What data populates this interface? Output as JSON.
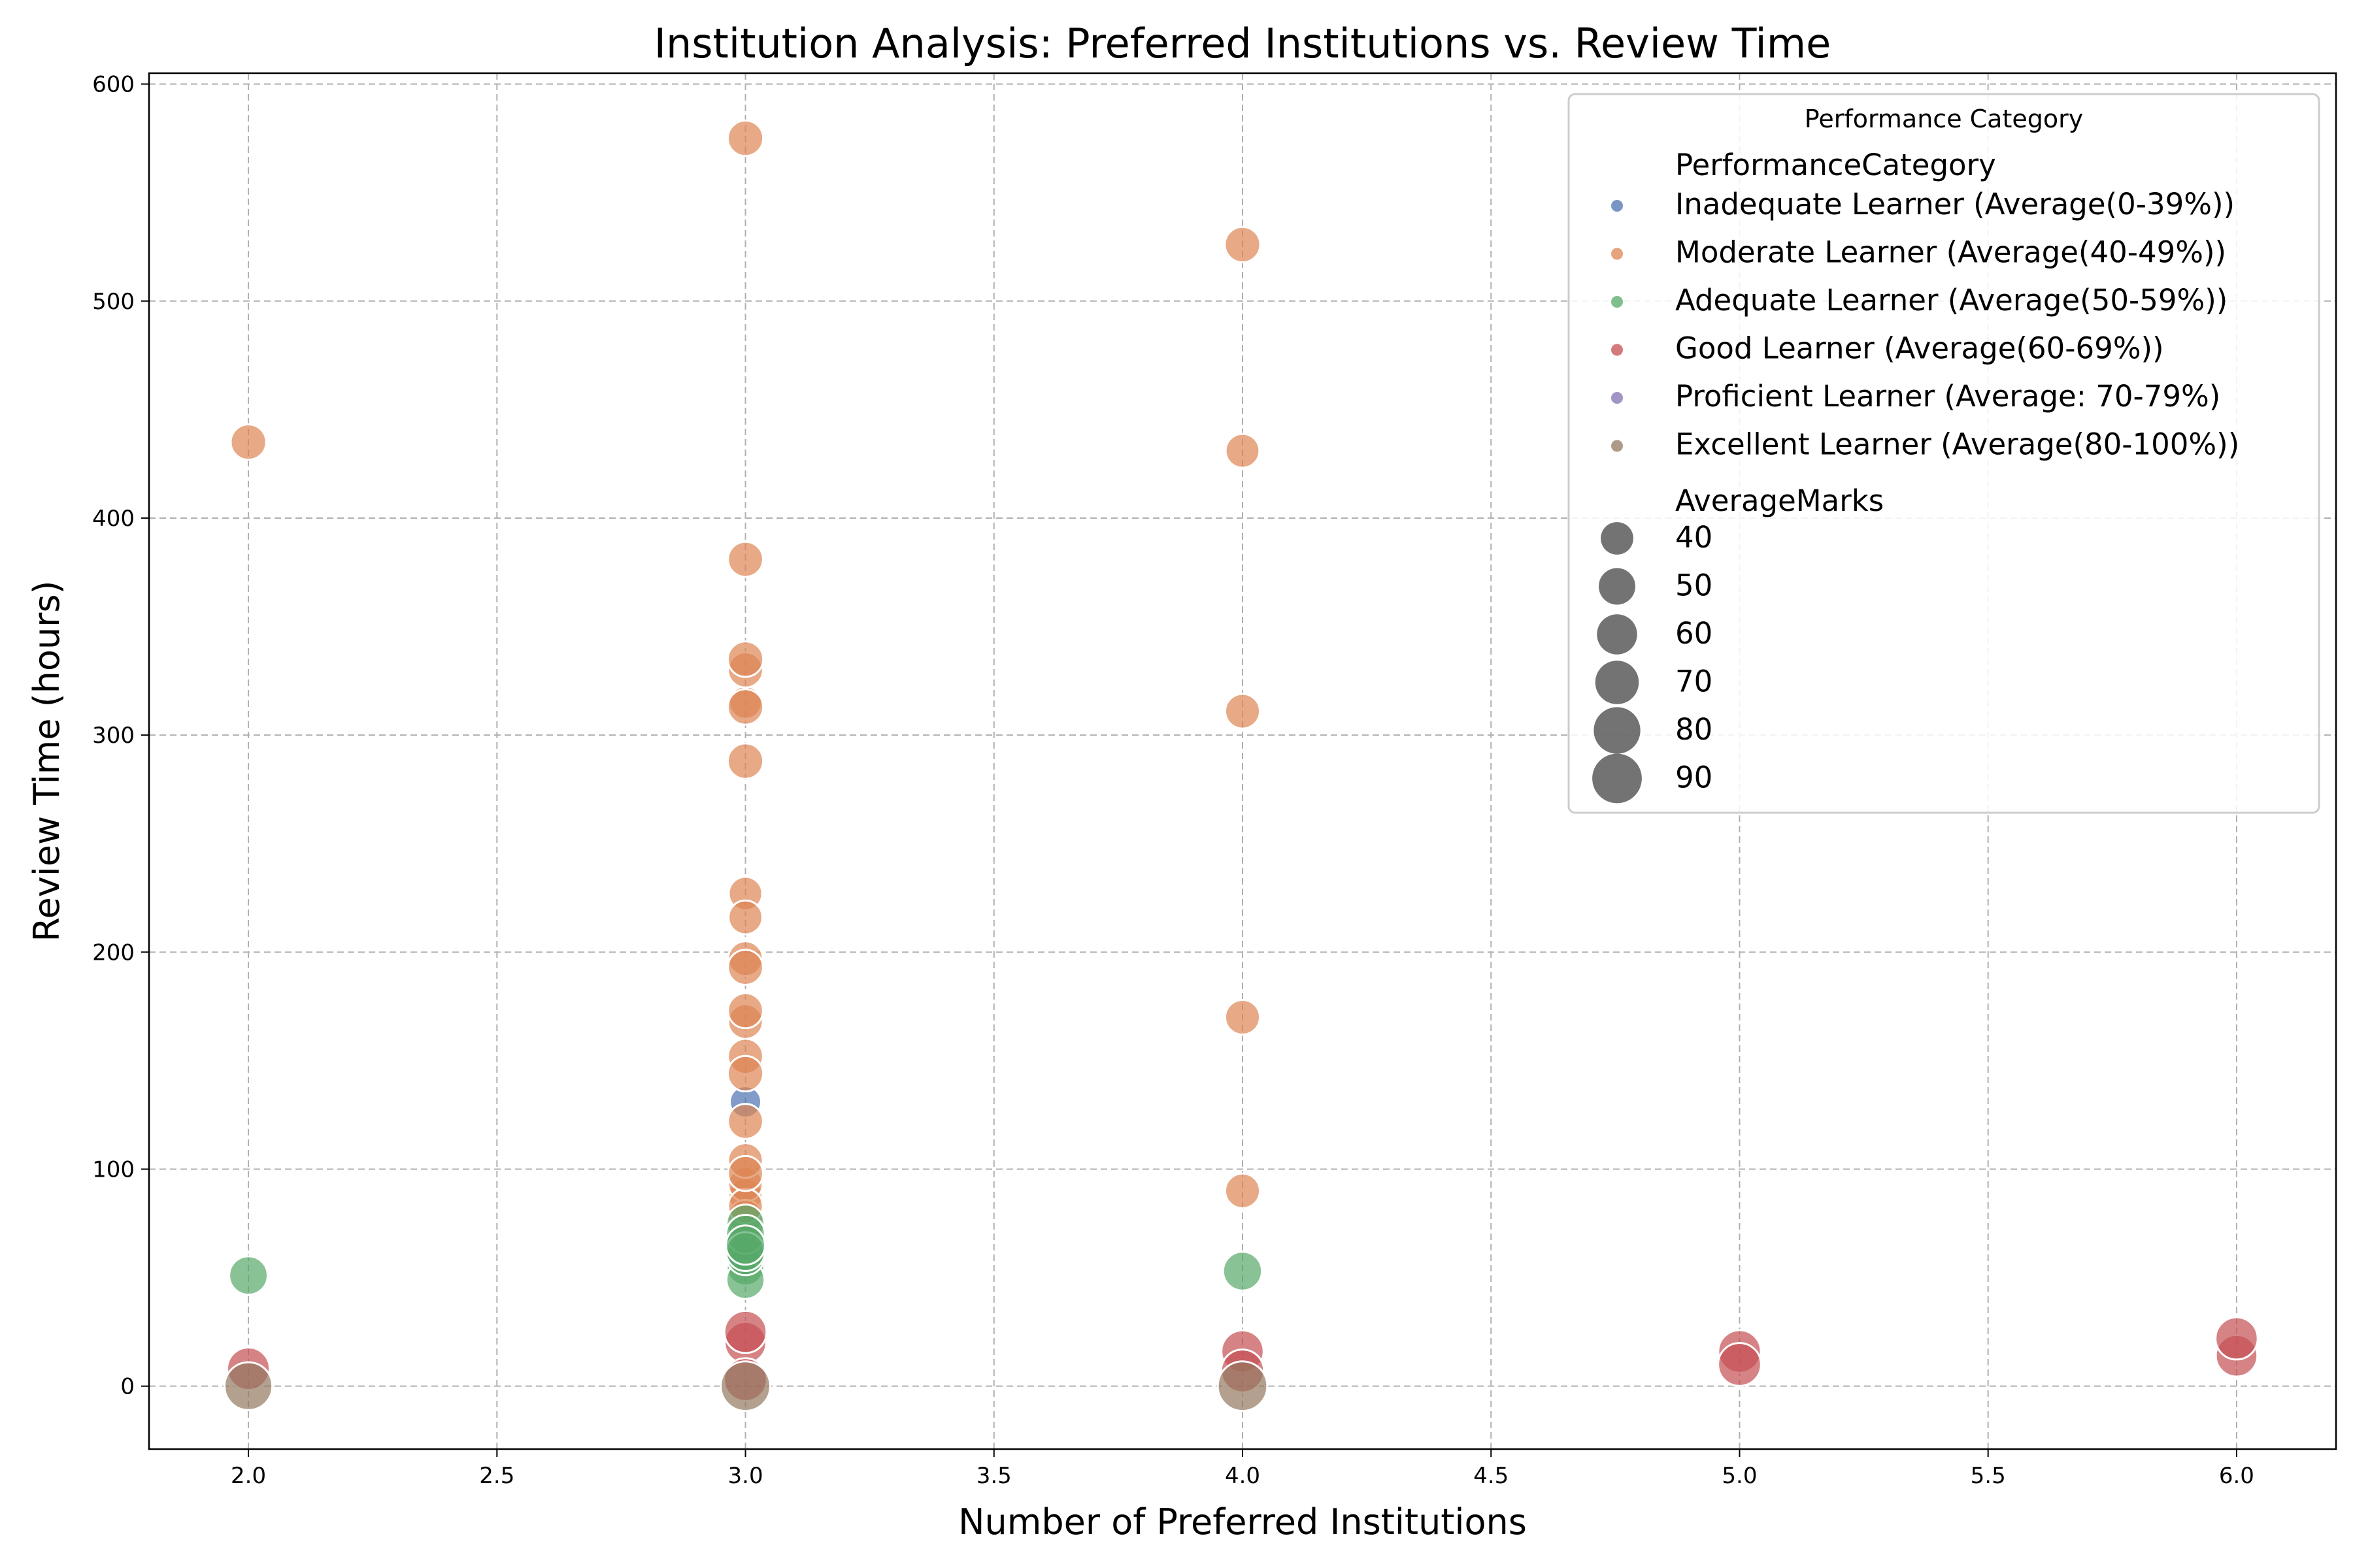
{
  "chart_data": {
    "type": "scatter",
    "title": "Institution Analysis: Preferred Institutions vs. Review Time",
    "xlabel": "Number of Preferred Institutions",
    "ylabel": "Review Time (hours)",
    "xlim": [
      1.8,
      6.2
    ],
    "ylim": [
      -29,
      605
    ],
    "xticks": [
      "2.0",
      "2.5",
      "3.0",
      "3.5",
      "4.0",
      "4.5",
      "5.0",
      "5.5",
      "6.0"
    ],
    "yticks": [
      "0",
      "100",
      "200",
      "300",
      "400",
      "500",
      "600"
    ],
    "grid": true,
    "legend": {
      "placement": "top-right",
      "title": "Performance Category",
      "hue_title": "PerformanceCategory",
      "size_title": "AverageMarks",
      "size_values": [
        "40",
        "50",
        "60",
        "70",
        "80",
        "90"
      ]
    },
    "series": [
      {
        "name": "Inadequate Learner (Average(0-39%))",
        "color": "#4c72b0",
        "points": [
          {
            "x": 3,
            "y": 131,
            "m": 37
          }
        ]
      },
      {
        "name": "Moderate Learner (Average(40-49%))",
        "color": "#dd8452",
        "points": [
          {
            "x": 2,
            "y": 435,
            "m": 47
          },
          {
            "x": 3,
            "y": 575,
            "m": 47
          },
          {
            "x": 3,
            "y": 381,
            "m": 46
          },
          {
            "x": 3,
            "y": 335,
            "m": 47
          },
          {
            "x": 3,
            "y": 330,
            "m": 46
          },
          {
            "x": 3,
            "y": 315,
            "m": 40
          },
          {
            "x": 3,
            "y": 313,
            "m": 47
          },
          {
            "x": 3,
            "y": 288,
            "m": 47
          },
          {
            "x": 3,
            "y": 227,
            "m": 42
          },
          {
            "x": 3,
            "y": 216,
            "m": 43
          },
          {
            "x": 3,
            "y": 197,
            "m": 45
          },
          {
            "x": 3,
            "y": 193,
            "m": 46
          },
          {
            "x": 3,
            "y": 173,
            "m": 46
          },
          {
            "x": 3,
            "y": 168,
            "m": 45
          },
          {
            "x": 3,
            "y": 152,
            "m": 46
          },
          {
            "x": 3,
            "y": 144,
            "m": 47
          },
          {
            "x": 3,
            "y": 122,
            "m": 46
          },
          {
            "x": 3,
            "y": 104,
            "m": 45
          },
          {
            "x": 3,
            "y": 98,
            "m": 46
          },
          {
            "x": 3,
            "y": 93,
            "m": 44
          },
          {
            "x": 3,
            "y": 88,
            "m": 43
          },
          {
            "x": 3,
            "y": 83,
            "m": 45
          },
          {
            "x": 3,
            "y": 78,
            "m": 44
          },
          {
            "x": 4,
            "y": 526,
            "m": 47
          },
          {
            "x": 4,
            "y": 431,
            "m": 43
          },
          {
            "x": 4,
            "y": 311,
            "m": 45
          },
          {
            "x": 4,
            "y": 170,
            "m": 45
          },
          {
            "x": 4,
            "y": 90,
            "m": 45
          }
        ]
      },
      {
        "name": "Adequate Learner (Average(50-59%))",
        "color": "#55a868",
        "points": [
          {
            "x": 2,
            "y": 51,
            "m": 55
          },
          {
            "x": 3,
            "y": 75,
            "m": 53
          },
          {
            "x": 3,
            "y": 70,
            "m": 56
          },
          {
            "x": 3,
            "y": 65,
            "m": 57
          },
          {
            "x": 3,
            "y": 62,
            "m": 56
          },
          {
            "x": 3,
            "y": 60,
            "m": 55
          },
          {
            "x": 3,
            "y": 55,
            "m": 52
          },
          {
            "x": 3,
            "y": 49,
            "m": 54
          },
          {
            "x": 4,
            "y": 53,
            "m": 56
          }
        ]
      },
      {
        "name": "Good Learner (Average(60-69%))",
        "color": "#c44e52",
        "points": [
          {
            "x": 2,
            "y": 8,
            "m": 67
          },
          {
            "x": 3,
            "y": 25,
            "m": 66
          },
          {
            "x": 3,
            "y": 20,
            "m": 64
          },
          {
            "x": 3,
            "y": 3,
            "m": 68
          },
          {
            "x": 4,
            "y": 16,
            "m": 66
          },
          {
            "x": 4,
            "y": 7,
            "m": 68
          },
          {
            "x": 5,
            "y": 16,
            "m": 67
          },
          {
            "x": 5,
            "y": 10,
            "m": 68
          },
          {
            "x": 6,
            "y": 22,
            "m": 66
          },
          {
            "x": 6,
            "y": 14,
            "m": 64
          }
        ]
      },
      {
        "name": "Proficient Learner (Average: 70-79%)",
        "color": "#8172b3",
        "points": []
      },
      {
        "name": "Excellent Learner (Average(80-100%))",
        "color": "#937860",
        "points": [
          {
            "x": 2,
            "y": 0,
            "m": 84
          },
          {
            "x": 3,
            "y": 0,
            "m": 90
          },
          {
            "x": 4,
            "y": 0,
            "m": 90
          }
        ]
      }
    ]
  }
}
